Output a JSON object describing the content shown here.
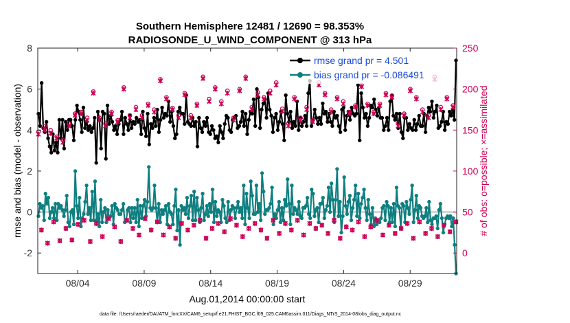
{
  "chart_data": {
    "type": "line",
    "title": "Southern Hemisphere 12481 / 12690 = 98.353%",
    "subtitle": "RADIOSONDE_U_WIND_COMPONENT @ 313 hPa",
    "xlabel": "Aug.01,2014 00:00:00 start",
    "ylabel": "rmse and bias (model - observation)",
    "ylabel_right": "# of obs: o=possible; ×=assimilated",
    "xlim": [
      0,
      31.5
    ],
    "ylim": [
      -3,
      8
    ],
    "ylim_right": [
      -25,
      250
    ],
    "x_ticks": [
      3,
      8,
      13,
      18,
      23,
      28
    ],
    "x_tick_labels": [
      "08/04",
      "08/09",
      "08/14",
      "08/19",
      "08/24",
      "08/29"
    ],
    "y_ticks": [
      -2,
      0,
      2,
      4,
      6,
      8
    ],
    "y_tick_labels": [
      "-2",
      "0",
      "2",
      "4",
      "6",
      "8"
    ],
    "y_right_ticks": [
      0,
      50,
      100,
      150,
      200,
      250
    ],
    "y_right_tick_labels": [
      "0",
      "50",
      "100",
      "150",
      "200",
      "250"
    ],
    "legend_position": "top-right",
    "footer": "data file: /Users/raeder/DAI/ATM_forcXX/CAM6_setup/f.e21.FHIST_BGC.f09_025.CAM6assim.011/Diags_NTrS_2014-08/obs_diag_output.nc",
    "series": [
      {
        "name": "rmse grand pr = 4.501",
        "color": "#000000",
        "axis": "left",
        "values": [
          4.8,
          4.2,
          6.3,
          4.1,
          3.9,
          4.4,
          3.6,
          3.2,
          2.9,
          3.8,
          3.0,
          3.4,
          2.9,
          4.5,
          3.6,
          4.5,
          3.1,
          4.4,
          4.0,
          4.5,
          4.5,
          4.2,
          3.5,
          4.5,
          5.2,
          4.9,
          4.5,
          3.9,
          5.1,
          4.1,
          4.4,
          4.0,
          4.2,
          3.9,
          4.1,
          4.6,
          2.4,
          4.9,
          4.5,
          3.1,
          4.9,
          4.8,
          2.6,
          5.2,
          4.3,
          4.7,
          4.4,
          4.0,
          4.2,
          3.8,
          4.3,
          4.5,
          4.9,
          3.8,
          4.6,
          4.3,
          4.0,
          4.7,
          4.1,
          4.4,
          4.3,
          4.6,
          4.4,
          4.5,
          3.8,
          4.9,
          4.1,
          3.7,
          4.8,
          3.3,
          4.3,
          4.1,
          4.6,
          4.2,
          5.0,
          3.9,
          4.5,
          5.1,
          4.6,
          4.8,
          4.7,
          5.4,
          4.4,
          4.9,
          4.2,
          3.6,
          3.8,
          4.9,
          5.1,
          4.8,
          4.8,
          4.3,
          5.7,
          4.4,
          4.3,
          4.2,
          4.6,
          4.2,
          4.4,
          3.2,
          4.6,
          4.1,
          3.9,
          4.4,
          4.2,
          4.6,
          3.9,
          3.8,
          4.2,
          4.0,
          3.6,
          3.7,
          3.4,
          4.2,
          3.9,
          3.6,
          4.3,
          4.7,
          4.6,
          4.0,
          3.9,
          4.5,
          4.6,
          4.7,
          4.1,
          4.2,
          4.4,
          4.9,
          4.2,
          4.8,
          3.8,
          4.5,
          4.9,
          4.8,
          5.5,
          4.2,
          6.0,
          5.6,
          4.1,
          5.0,
          5.3,
          5.5,
          4.6,
          5.8,
          5.0,
          4.7,
          3.9,
          4.6,
          4.8,
          4.0,
          4.4,
          4.9,
          4.3,
          3.5,
          5.7,
          4.8,
          4.4,
          4.9,
          4.1,
          4.4,
          4.2,
          5.4,
          4.0,
          4.6,
          4.2,
          4.4,
          4.7,
          4.2,
          5.8,
          6.4,
          4.2,
          4.5,
          5.0,
          4.6,
          4.3,
          4.6,
          4.3,
          5.3,
          4.8,
          4.9,
          4.4,
          4.8,
          4.4,
          4.2,
          4.9,
          4.6,
          4.7,
          4.2,
          3.9,
          5.0,
          5.1,
          4.0,
          4.7,
          4.9,
          4.5,
          5.1,
          4.8,
          4.7,
          4.8,
          6.2,
          3.5,
          5.8,
          5.1,
          4.6,
          4.8,
          4.2,
          4.6,
          5.2,
          5.1,
          5.5,
          5.0,
          4.7,
          5.1,
          4.6,
          4.6,
          4.0,
          4.2,
          4.6,
          4.0,
          5.4,
          5.7,
          4.7,
          4.5,
          4.8,
          4.1,
          4.8,
          3.9,
          3.6,
          4.6,
          4.6,
          4.0,
          4.3,
          4.1,
          4.0,
          4.5,
          4.0,
          4.3,
          4.7,
          4.2,
          4.2,
          4.8,
          3.9,
          4.7,
          5.1,
          4.9,
          5.4,
          4.6,
          4.9,
          5.2,
          4.1,
          4.2,
          4.4,
          4.9,
          4.0,
          4.4,
          4.3,
          4.9,
          4.7,
          5.0,
          4.5,
          7.4
        ]
      },
      {
        "name": "bias grand pr = -0.086491",
        "color": "#0f7f80",
        "axis": "left",
        "values": [
          -0.2,
          0.4,
          0.2,
          0.3,
          -0.4,
          0.9,
          0.4,
          0.7,
          -0.3,
          0.0,
          0.2,
          -0.3,
          0.4,
          -0.4,
          0.4,
          0.2,
          0.3,
          0.1,
          -0.2,
          0.1,
          0.8,
          -0.5,
          -0.7,
          0.0,
          0.1,
          -0.6,
          2.0,
          0.3,
          -0.3,
          0.7,
          -0.7,
          -0.3,
          -0.1,
          0.5,
          1.3,
          -0.1,
          0.2,
          -0.4,
          1.0,
          -0.4,
          1.5,
          -0.4,
          -0.1,
          -0.7,
          0.6,
          -0.5,
          0.0,
          0.2,
          -0.5,
          0.1,
          -0.3,
          -0.2,
          0.3,
          -0.6,
          0.4,
          0.2,
          0.1,
          -0.1,
          -0.1,
          0.1,
          0.4,
          -0.5,
          -0.4,
          0.1,
          0.2,
          -0.5,
          0.2,
          -0.3,
          0.2,
          -0.5,
          0.6,
          -0.7,
          0.3,
          -0.3,
          0.3,
          0.6,
          -0.2,
          0.5,
          2.2,
          0.2,
          0.1,
          0.2,
          1.3,
          0.2,
          -0.5,
          0.4,
          -0.5,
          0.1,
          -0.1,
          0.1,
          0.3,
          -0.6,
          0.4,
          0.0,
          -0.1,
          -0.6,
          0.3,
          1.1,
          -0.9,
          0.1,
          -1.6,
          0.3,
          0.1,
          0.2,
          -0.1,
          0.7,
          -0.3,
          0.3,
          0.8,
          -0.4,
          1.0,
          -0.4,
          0.7,
          0.1,
          -0.5,
          0.2,
          0.9,
          -0.4,
          -0.1,
          0.3,
          -0.2,
          0.4,
          0.0,
          1.1,
          -0.5,
          0.5,
          -0.2,
          0.1,
          0.0,
          -0.5,
          0.6,
          0.3,
          -0.3,
          -0.5,
          0.5,
          -0.4,
          0.1,
          0.3,
          0.2,
          -0.3,
          0.2,
          0.5,
          0.0,
          0.2,
          -0.3,
          1.3,
          -0.6,
          0.9,
          0.2,
          -0.3,
          1.5,
          0.8,
          -0.1,
          -0.1,
          1.3,
          0.0,
          0.4,
          -0.4,
          1.9,
          1.0,
          -0.1,
          0.1,
          0.1,
          0.2,
          0.4,
          1.2,
          -0.6,
          -0.1,
          -0.3,
          0.1,
          0.5,
          -0.5,
          0.2,
          -0.4,
          0.6,
          0.3,
          1.6,
          0.4,
          -0.6,
          1.3,
          -0.1,
          0.2,
          0.1,
          -0.1,
          0.5,
          -0.2,
          -0.3,
          0.2,
          0.2,
          0.3,
          0.7,
          -0.1,
          -0.3,
          1.1,
          0.9,
          -0.2,
          0.1,
          0.2,
          -0.5,
          0.4,
          0.4,
          0.7,
          -0.3,
          0.1,
          0.3,
          1.2,
          0.0,
          1.4,
          0.6,
          -0.5,
          0.6,
          2.1,
          -0.2,
          0.5,
          -1.0,
          -0.2,
          1.7,
          0.3,
          -0.1,
          0.5,
          0.8,
          -0.4,
          0.2,
          0.6,
          1.3,
          -0.2,
          0.9,
          -0.3,
          0.4,
          0.7,
          1.1,
          0.2,
          -0.4,
          0.6,
          -0.1,
          -0.6,
          0.2,
          -0.7,
          -0.3,
          -0.6,
          -0.4,
          -0.5,
          -0.3,
          0.2,
          0.3,
          -0.4,
          0.5,
          0.3,
          -0.5,
          0.2,
          -0.5,
          0.4,
          -0.7,
          1.2,
          0.3,
          0.2,
          -0.8,
          0.4,
          0.3,
          -0.5,
          0.5,
          0.2,
          -0.1,
          0.6,
          1.3,
          -0.5,
          0.1,
          0.8,
          -0.3,
          0.3,
          0.2,
          -0.2,
          -0.3,
          -0.2,
          0.2,
          -0.5,
          0.5,
          -0.4,
          -0.6,
          -0.3,
          -0.3,
          -0.2,
          -0.8,
          0.1,
          0.4,
          -0.3,
          -1.0,
          -0.6,
          -0.3,
          -0.2,
          -0.3,
          -0.2,
          -0.7,
          -0.3,
          -1.6,
          -3.0
        ]
      },
      {
        "name": "possible obs (o)",
        "color": "#cc0055",
        "axis": "right",
        "values": [
          148,
          28,
          155,
          12,
          150,
          38,
          142,
          15,
          138,
          30,
          158,
          16,
          170,
          35,
          172,
          40,
          165,
          14,
          197,
          36,
          165,
          20,
          158,
          42,
          172,
          32,
          162,
          14,
          202,
          40,
          168,
          30,
          178,
          22,
          168,
          42,
          182,
          28,
          175,
          38,
          212,
          22,
          190,
          32,
          177,
          18,
          168,
          36,
          195,
          28,
          168,
          34,
          182,
          40,
          215,
          18,
          188,
          30,
          202,
          36,
          185,
          26,
          198,
          42,
          165,
          34,
          200,
          20,
          215,
          30,
          178,
          36,
          196,
          28,
          190,
          18,
          198,
          40,
          208,
          24,
          176,
          36,
          158,
          28,
          190,
          40,
          165,
          22,
          178,
          36,
          162,
          30,
          208,
          34,
          195,
          24,
          175,
          40,
          190,
          18,
          185,
          32,
          172,
          28,
          180,
          38,
          205,
          20,
          182,
          32,
          172,
          40,
          182,
          22,
          195,
          34,
          192,
          24,
          158,
          30,
          170,
          36,
          200,
          18,
          190,
          38,
          175,
          24,
          168,
          30,
          215,
          20,
          178,
          34,
          190,
          26,
          180,
          38
        ]
      },
      {
        "name": "assimilated obs (×)",
        "color": "#cc0055",
        "axis": "right",
        "values": [
          145,
          28,
          150,
          12,
          146,
          38,
          140,
          15,
          135,
          30,
          155,
          16,
          168,
          35,
          170,
          40,
          162,
          14,
          195,
          36,
          162,
          20,
          155,
          42,
          170,
          32,
          160,
          14,
          200,
          40,
          165,
          30,
          175,
          22,
          165,
          42,
          180,
          28,
          172,
          38,
          210,
          22,
          188,
          32,
          175,
          18,
          165,
          36,
          193,
          28,
          165,
          34,
          180,
          40,
          213,
          18,
          185,
          30,
          200,
          36,
          182,
          26,
          195,
          42,
          162,
          34,
          198,
          20,
          213,
          30,
          175,
          36,
          193,
          28,
          188,
          18,
          195,
          40,
          205,
          24,
          173,
          36,
          155,
          28,
          188,
          40,
          162,
          22,
          175,
          36,
          160,
          30,
          205,
          34,
          193,
          24,
          172,
          40,
          188,
          18,
          182,
          32,
          170,
          28,
          178,
          38,
          203,
          20,
          180,
          32,
          170,
          40,
          180,
          22,
          193,
          34,
          190,
          24,
          155,
          30,
          168,
          36,
          198,
          18,
          188,
          38,
          172,
          24,
          165,
          30,
          212,
          20,
          175,
          34,
          188,
          26,
          178,
          38
        ]
      }
    ]
  }
}
